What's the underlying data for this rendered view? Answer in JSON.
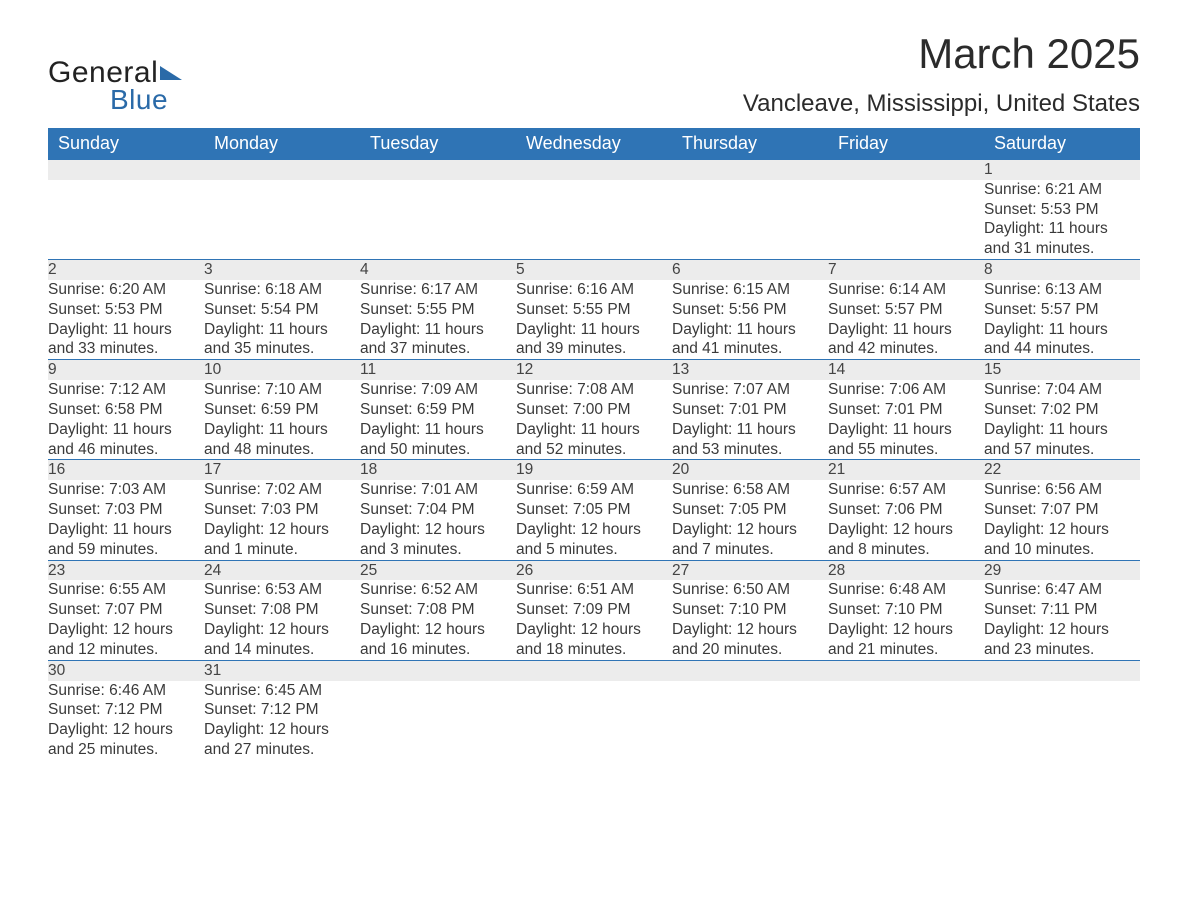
{
  "logo": {
    "word1": "General",
    "word2": "Blue"
  },
  "title": {
    "month": "March 2025",
    "location": "Vancleave, Mississippi, United States"
  },
  "colors": {
    "header_bg": "#2f74b5",
    "header_text": "#ffffff",
    "daynum_bg": "#ececec",
    "row_divider": "#2f74b5",
    "body_text": "#3a3a3a",
    "logo_blue": "#2a6aa8",
    "page_bg": "#ffffff"
  },
  "calendar": {
    "day_headers": [
      "Sunday",
      "Monday",
      "Tuesday",
      "Wednesday",
      "Thursday",
      "Friday",
      "Saturday"
    ],
    "weeks": [
      [
        null,
        null,
        null,
        null,
        null,
        null,
        {
          "n": "1",
          "sr": "Sunrise: 6:21 AM",
          "ss": "Sunset: 5:53 PM",
          "d1": "Daylight: 11 hours",
          "d2": "and 31 minutes."
        }
      ],
      [
        {
          "n": "2",
          "sr": "Sunrise: 6:20 AM",
          "ss": "Sunset: 5:53 PM",
          "d1": "Daylight: 11 hours",
          "d2": "and 33 minutes."
        },
        {
          "n": "3",
          "sr": "Sunrise: 6:18 AM",
          "ss": "Sunset: 5:54 PM",
          "d1": "Daylight: 11 hours",
          "d2": "and 35 minutes."
        },
        {
          "n": "4",
          "sr": "Sunrise: 6:17 AM",
          "ss": "Sunset: 5:55 PM",
          "d1": "Daylight: 11 hours",
          "d2": "and 37 minutes."
        },
        {
          "n": "5",
          "sr": "Sunrise: 6:16 AM",
          "ss": "Sunset: 5:55 PM",
          "d1": "Daylight: 11 hours",
          "d2": "and 39 minutes."
        },
        {
          "n": "6",
          "sr": "Sunrise: 6:15 AM",
          "ss": "Sunset: 5:56 PM",
          "d1": "Daylight: 11 hours",
          "d2": "and 41 minutes."
        },
        {
          "n": "7",
          "sr": "Sunrise: 6:14 AM",
          "ss": "Sunset: 5:57 PM",
          "d1": "Daylight: 11 hours",
          "d2": "and 42 minutes."
        },
        {
          "n": "8",
          "sr": "Sunrise: 6:13 AM",
          "ss": "Sunset: 5:57 PM",
          "d1": "Daylight: 11 hours",
          "d2": "and 44 minutes."
        }
      ],
      [
        {
          "n": "9",
          "sr": "Sunrise: 7:12 AM",
          "ss": "Sunset: 6:58 PM",
          "d1": "Daylight: 11 hours",
          "d2": "and 46 minutes."
        },
        {
          "n": "10",
          "sr": "Sunrise: 7:10 AM",
          "ss": "Sunset: 6:59 PM",
          "d1": "Daylight: 11 hours",
          "d2": "and 48 minutes."
        },
        {
          "n": "11",
          "sr": "Sunrise: 7:09 AM",
          "ss": "Sunset: 6:59 PM",
          "d1": "Daylight: 11 hours",
          "d2": "and 50 minutes."
        },
        {
          "n": "12",
          "sr": "Sunrise: 7:08 AM",
          "ss": "Sunset: 7:00 PM",
          "d1": "Daylight: 11 hours",
          "d2": "and 52 minutes."
        },
        {
          "n": "13",
          "sr": "Sunrise: 7:07 AM",
          "ss": "Sunset: 7:01 PM",
          "d1": "Daylight: 11 hours",
          "d2": "and 53 minutes."
        },
        {
          "n": "14",
          "sr": "Sunrise: 7:06 AM",
          "ss": "Sunset: 7:01 PM",
          "d1": "Daylight: 11 hours",
          "d2": "and 55 minutes."
        },
        {
          "n": "15",
          "sr": "Sunrise: 7:04 AM",
          "ss": "Sunset: 7:02 PM",
          "d1": "Daylight: 11 hours",
          "d2": "and 57 minutes."
        }
      ],
      [
        {
          "n": "16",
          "sr": "Sunrise: 7:03 AM",
          "ss": "Sunset: 7:03 PM",
          "d1": "Daylight: 11 hours",
          "d2": "and 59 minutes."
        },
        {
          "n": "17",
          "sr": "Sunrise: 7:02 AM",
          "ss": "Sunset: 7:03 PM",
          "d1": "Daylight: 12 hours",
          "d2": "and 1 minute."
        },
        {
          "n": "18",
          "sr": "Sunrise: 7:01 AM",
          "ss": "Sunset: 7:04 PM",
          "d1": "Daylight: 12 hours",
          "d2": "and 3 minutes."
        },
        {
          "n": "19",
          "sr": "Sunrise: 6:59 AM",
          "ss": "Sunset: 7:05 PM",
          "d1": "Daylight: 12 hours",
          "d2": "and 5 minutes."
        },
        {
          "n": "20",
          "sr": "Sunrise: 6:58 AM",
          "ss": "Sunset: 7:05 PM",
          "d1": "Daylight: 12 hours",
          "d2": "and 7 minutes."
        },
        {
          "n": "21",
          "sr": "Sunrise: 6:57 AM",
          "ss": "Sunset: 7:06 PM",
          "d1": "Daylight: 12 hours",
          "d2": "and 8 minutes."
        },
        {
          "n": "22",
          "sr": "Sunrise: 6:56 AM",
          "ss": "Sunset: 7:07 PM",
          "d1": "Daylight: 12 hours",
          "d2": "and 10 minutes."
        }
      ],
      [
        {
          "n": "23",
          "sr": "Sunrise: 6:55 AM",
          "ss": "Sunset: 7:07 PM",
          "d1": "Daylight: 12 hours",
          "d2": "and 12 minutes."
        },
        {
          "n": "24",
          "sr": "Sunrise: 6:53 AM",
          "ss": "Sunset: 7:08 PM",
          "d1": "Daylight: 12 hours",
          "d2": "and 14 minutes."
        },
        {
          "n": "25",
          "sr": "Sunrise: 6:52 AM",
          "ss": "Sunset: 7:08 PM",
          "d1": "Daylight: 12 hours",
          "d2": "and 16 minutes."
        },
        {
          "n": "26",
          "sr": "Sunrise: 6:51 AM",
          "ss": "Sunset: 7:09 PM",
          "d1": "Daylight: 12 hours",
          "d2": "and 18 minutes."
        },
        {
          "n": "27",
          "sr": "Sunrise: 6:50 AM",
          "ss": "Sunset: 7:10 PM",
          "d1": "Daylight: 12 hours",
          "d2": "and 20 minutes."
        },
        {
          "n": "28",
          "sr": "Sunrise: 6:48 AM",
          "ss": "Sunset: 7:10 PM",
          "d1": "Daylight: 12 hours",
          "d2": "and 21 minutes."
        },
        {
          "n": "29",
          "sr": "Sunrise: 6:47 AM",
          "ss": "Sunset: 7:11 PM",
          "d1": "Daylight: 12 hours",
          "d2": "and 23 minutes."
        }
      ],
      [
        {
          "n": "30",
          "sr": "Sunrise: 6:46 AM",
          "ss": "Sunset: 7:12 PM",
          "d1": "Daylight: 12 hours",
          "d2": "and 25 minutes."
        },
        {
          "n": "31",
          "sr": "Sunrise: 6:45 AM",
          "ss": "Sunset: 7:12 PM",
          "d1": "Daylight: 12 hours",
          "d2": "and 27 minutes."
        },
        null,
        null,
        null,
        null,
        null
      ]
    ]
  }
}
